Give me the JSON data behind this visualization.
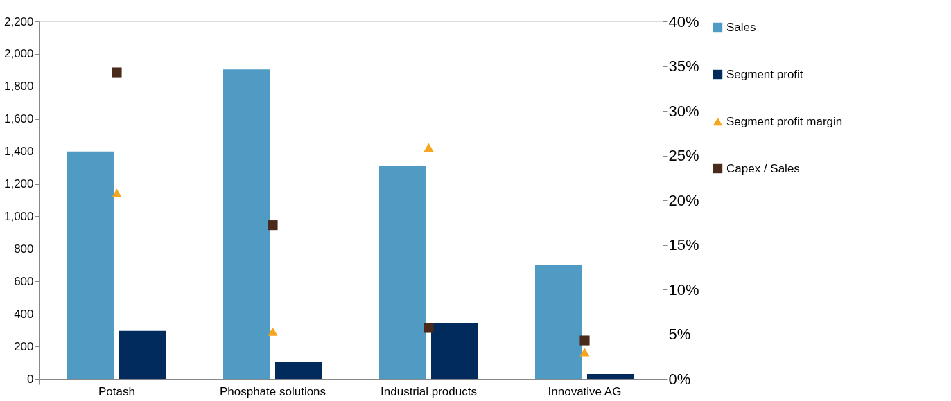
{
  "chart_data": {
    "type": "bar",
    "categories": [
      "Potash",
      "Phosphate solutions",
      "Industrial products",
      "Innovative AG"
    ],
    "series": [
      {
        "name": "Sales",
        "color": "#4f9bc4",
        "values": [
          1400,
          1905,
          1310,
          700
        ]
      },
      {
        "name": "Segment profit",
        "color": "#002b5c",
        "values": [
          295,
          107,
          345,
          30
        ]
      },
      {
        "name": "Segment profit margin",
        "color": "#f7a51c",
        "type": "scatter",
        "axis": "y2",
        "marker": "triangle",
        "values": [
          20.8,
          5.3,
          25.9,
          3.0
        ]
      },
      {
        "name": "Capex / Sales",
        "color": "#4a2a1a",
        "type": "scatter",
        "axis": "y2",
        "marker": "square",
        "values": [
          34.3,
          17.2,
          5.7,
          4.3
        ]
      }
    ],
    "ylim": [
      0,
      2200
    ],
    "yticks": [
      0,
      200,
      400,
      600,
      800,
      {
        "value": 1000,
        "label": "1,000"
      },
      {
        "value": 1200,
        "label": "1,200"
      },
      {
        "value": 1400,
        "label": "1,400"
      },
      {
        "value": 1600,
        "label": "1,600"
      },
      {
        "value": 1800,
        "label": "1,800"
      },
      {
        "value": 2000,
        "label": "2,000"
      },
      {
        "value": 2200,
        "label": "2,200"
      }
    ],
    "y2lim": [
      0,
      40
    ],
    "y2ticks": [
      {
        "value": 0,
        "label": "0%"
      },
      {
        "value": 5,
        "label": "5%"
      },
      {
        "value": 10,
        "label": "10%"
      },
      {
        "value": 15,
        "label": "15%"
      },
      {
        "value": 20,
        "label": "20%"
      },
      {
        "value": 25,
        "label": "25%"
      },
      {
        "value": 30,
        "label": "30%"
      },
      {
        "value": 35,
        "label": "35%"
      },
      {
        "value": 40,
        "label": "40%"
      }
    ],
    "grid": false,
    "legend": "right"
  }
}
